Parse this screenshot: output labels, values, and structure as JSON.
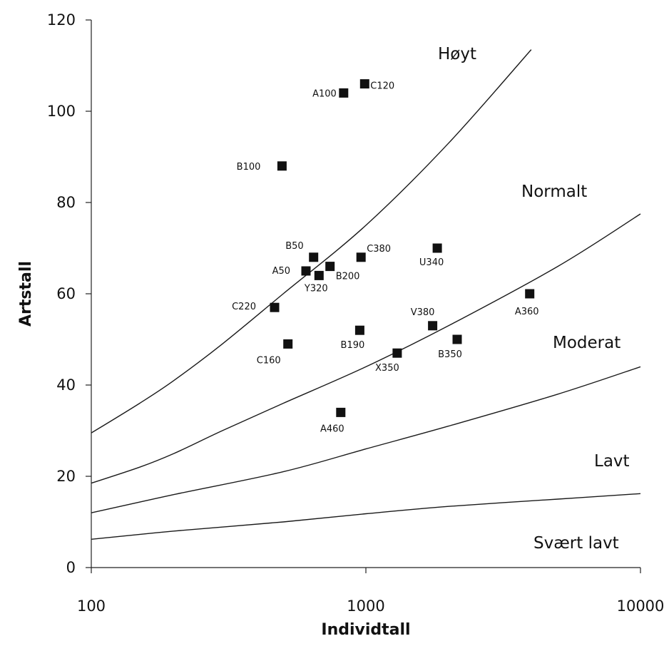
{
  "chart_data": {
    "type": "scatter",
    "title": "",
    "xlabel": "Individtall",
    "ylabel": "Artstall",
    "x_scale": "log",
    "xlim": [
      100,
      10000
    ],
    "ylim": [
      0,
      120
    ],
    "x_ticks": [
      100,
      1000,
      10000
    ],
    "x_tick_labels": [
      "100",
      "1000",
      "10000"
    ],
    "y_ticks": [
      0,
      20,
      40,
      60,
      80,
      100,
      120
    ],
    "y_tick_labels": [
      "0",
      "20",
      "40",
      "60",
      "80",
      "100",
      "120"
    ],
    "grid": false,
    "legend": "none",
    "points": [
      {
        "label": "A100",
        "x": 830,
        "y": 104
      },
      {
        "label": "C120",
        "x": 990,
        "y": 106
      },
      {
        "label": "B100",
        "x": 495,
        "y": 88
      },
      {
        "label": "B50",
        "x": 645,
        "y": 68
      },
      {
        "label": "A50",
        "x": 605,
        "y": 65
      },
      {
        "label": "B200",
        "x": 740,
        "y": 66
      },
      {
        "label": "Y320",
        "x": 675,
        "y": 64
      },
      {
        "label": "C380",
        "x": 960,
        "y": 68
      },
      {
        "label": "U340",
        "x": 1820,
        "y": 70
      },
      {
        "label": "C220",
        "x": 465,
        "y": 57
      },
      {
        "label": "C160",
        "x": 520,
        "y": 49
      },
      {
        "label": "B190",
        "x": 950,
        "y": 52
      },
      {
        "label": "V380",
        "x": 1750,
        "y": 53
      },
      {
        "label": "X350",
        "x": 1300,
        "y": 47
      },
      {
        "label": "B350",
        "x": 2150,
        "y": 50
      },
      {
        "label": "A360",
        "x": 3950,
        "y": 60
      },
      {
        "label": "A460",
        "x": 810,
        "y": 34
      }
    ],
    "boundary_curves": [
      {
        "x": [
          100,
          150,
          200,
          300,
          500,
          1000,
          2000,
          4000
        ],
        "y": [
          29.5,
          36,
          41,
          49,
          60,
          75,
          93,
          113.5
        ]
      },
      {
        "x": [
          100,
          150,
          200,
          300,
          500,
          1000,
          2000,
          5000,
          10000
        ],
        "y": [
          18.5,
          22,
          25,
          30,
          36,
          44,
          53,
          66,
          77.5
        ]
      },
      {
        "x": [
          100,
          200,
          500,
          1000,
          2000,
          5000,
          10000
        ],
        "y": [
          12,
          16,
          21,
          26,
          31,
          38,
          44
        ]
      },
      {
        "x": [
          100,
          200,
          500,
          1000,
          2000,
          5000,
          10000
        ],
        "y": [
          6.2,
          8,
          10,
          11.8,
          13.4,
          15,
          16.2
        ]
      }
    ],
    "zone_labels": [
      "Høyt",
      "Normalt",
      "Moderat",
      "Lavt",
      "Svært lavt"
    ]
  },
  "colors": {
    "axis": "#222222",
    "curve": "#1a1a1a",
    "marker": "#111111",
    "text": "#111111"
  }
}
